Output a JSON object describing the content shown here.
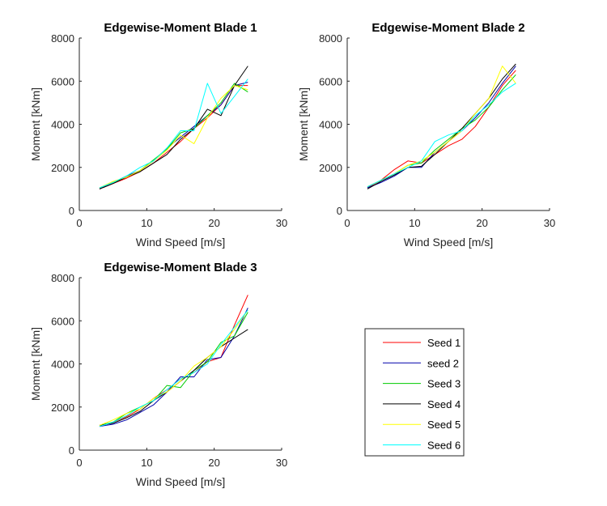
{
  "chart_data": [
    {
      "type": "line",
      "title": "Edgewise-Moment Blade 1",
      "xlabel": "Wind Speed [m/s]",
      "ylabel": "Moment [kNm]",
      "xlim": [
        0,
        30
      ],
      "ylim": [
        0,
        8000
      ],
      "xticks": [
        0,
        10,
        20,
        30
      ],
      "yticks": [
        0,
        2000,
        4000,
        6000,
        8000
      ],
      "x": [
        3,
        5,
        7,
        9,
        11,
        13,
        15,
        17,
        19,
        21,
        23,
        25
      ],
      "series": [
        {
          "name": "Seed 1",
          "values": [
            1000,
            1250,
            1500,
            1800,
            2200,
            2700,
            3200,
            3800,
            4300,
            4900,
            5800,
            5800
          ]
        },
        {
          "name": "seed 2",
          "values": [
            1000,
            1300,
            1600,
            1850,
            2300,
            2900,
            3400,
            3900,
            4400,
            4900,
            5800,
            5950
          ]
        },
        {
          "name": "Seed 3",
          "values": [
            1050,
            1300,
            1550,
            1850,
            2350,
            2850,
            3600,
            3800,
            4400,
            5000,
            5900,
            5500
          ]
        },
        {
          "name": "Seed 4",
          "values": [
            1000,
            1250,
            1550,
            1800,
            2200,
            2600,
            3300,
            3800,
            4700,
            4400,
            5800,
            6700
          ]
        },
        {
          "name": "Seed 5",
          "values": [
            1050,
            1350,
            1550,
            1850,
            2300,
            2800,
            3500,
            3100,
            4300,
            5200,
            5800,
            5600
          ]
        },
        {
          "name": "Seed 6",
          "values": [
            1050,
            1300,
            1600,
            2000,
            2300,
            2900,
            3700,
            3700,
            5900,
            4500,
            5300,
            6100
          ]
        }
      ]
    },
    {
      "type": "line",
      "title": "Edgewise-Moment Blade 2",
      "xlabel": "Wind Speed [m/s]",
      "ylabel": "Moment [kNm]",
      "xlim": [
        0,
        30
      ],
      "ylim": [
        0,
        8000
      ],
      "xticks": [
        0,
        10,
        20,
        30
      ],
      "yticks": [
        0,
        2000,
        4000,
        6000,
        8000
      ],
      "x": [
        3,
        5,
        7,
        9,
        11,
        13,
        15,
        17,
        19,
        21,
        23,
        25
      ],
      "series": [
        {
          "name": "Seed 1",
          "values": [
            1050,
            1400,
            1900,
            2300,
            2200,
            2600,
            3000,
            3300,
            3900,
            4800,
            5800,
            6500
          ]
        },
        {
          "name": "seed 2",
          "values": [
            1050,
            1300,
            1600,
            2000,
            2000,
            2700,
            3200,
            3700,
            4300,
            5000,
            5900,
            6700
          ]
        },
        {
          "name": "Seed 3",
          "values": [
            1100,
            1400,
            1700,
            2100,
            2200,
            2800,
            3300,
            3800,
            4200,
            4800,
            5600,
            6300
          ]
        },
        {
          "name": "Seed 4",
          "values": [
            1000,
            1350,
            1650,
            2000,
            2050,
            2600,
            3200,
            3800,
            4500,
            5200,
            6100,
            6800
          ]
        },
        {
          "name": "Seed 5",
          "values": [
            1100,
            1400,
            1700,
            2100,
            2300,
            2700,
            3200,
            3700,
            4500,
            5200,
            6700,
            5900
          ]
        },
        {
          "name": "Seed 6",
          "values": [
            1100,
            1400,
            1700,
            2000,
            2300,
            3200,
            3500,
            3700,
            4400,
            4900,
            5500,
            5900
          ]
        }
      ]
    },
    {
      "type": "line",
      "title": "Edgewise-Moment Blade 3",
      "xlabel": "Wind Speed [m/s]",
      "ylabel": "Moment [kNm]",
      "xlim": [
        0,
        30
      ],
      "ylim": [
        0,
        8000
      ],
      "xticks": [
        0,
        10,
        20,
        30
      ],
      "yticks": [
        0,
        2000,
        4000,
        6000,
        8000
      ],
      "x": [
        3,
        5,
        7,
        9,
        11,
        13,
        15,
        17,
        19,
        21,
        23,
        25
      ],
      "series": [
        {
          "name": "Seed 1",
          "values": [
            1100,
            1300,
            1550,
            1900,
            2400,
            2800,
            3300,
            3600,
            4100,
            4300,
            5800,
            7200
          ]
        },
        {
          "name": "seed 2",
          "values": [
            1100,
            1200,
            1400,
            1750,
            2100,
            2700,
            3400,
            3400,
            4200,
            4300,
            5300,
            6600
          ]
        },
        {
          "name": "Seed 3",
          "values": [
            1150,
            1300,
            1700,
            2000,
            2300,
            3000,
            2900,
            3700,
            4100,
            5000,
            5300,
            6400
          ]
        },
        {
          "name": "Seed 4",
          "values": [
            1150,
            1250,
            1500,
            1800,
            2300,
            2700,
            3200,
            3700,
            4300,
            4800,
            5200,
            5600
          ]
        },
        {
          "name": "Seed 5",
          "values": [
            1150,
            1400,
            1700,
            1900,
            2400,
            2700,
            3200,
            3900,
            4300,
            4800,
            5600,
            6500
          ]
        },
        {
          "name": "Seed 6",
          "values": [
            1100,
            1300,
            1600,
            2000,
            2300,
            2800,
            3300,
            3600,
            4000,
            4900,
            5700,
            6500
          ]
        }
      ]
    }
  ],
  "legend": {
    "placement": "bottom-right",
    "entries": [
      {
        "name": "Seed 1",
        "color": "#ff0000"
      },
      {
        "name": "seed 2",
        "color": "#0000aa"
      },
      {
        "name": "Seed 3",
        "color": "#00cc00"
      },
      {
        "name": "Seed 4",
        "color": "#000000"
      },
      {
        "name": "Seed 5",
        "color": "#ffff00"
      },
      {
        "name": "Seed 6",
        "color": "#00ffff"
      }
    ]
  }
}
